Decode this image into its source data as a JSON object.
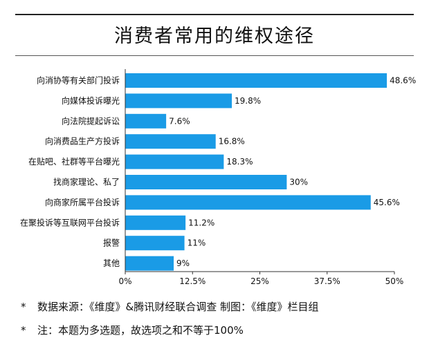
{
  "chart_data": {
    "type": "bar",
    "orientation": "horizontal",
    "title": "消费者常用的维权途径",
    "categories": [
      "向消协等有关部门投诉",
      "向媒体投诉曝光",
      "向法院提起诉讼",
      "向消费品生产方投诉",
      "在贴吧、社群等平台曝光",
      "找商家理论、私了",
      "向商家所属平台投诉",
      "在聚投诉等互联网平台投诉",
      "报警",
      "其他"
    ],
    "values": [
      48.6,
      19.8,
      7.6,
      16.8,
      18.3,
      30,
      45.6,
      11.2,
      11,
      9
    ],
    "value_labels": [
      "48.6%",
      "19.8%",
      "7.6%",
      "16.8%",
      "18.3%",
      "30%",
      "45.6%",
      "11.2%",
      "11%",
      "9%"
    ],
    "xlim": [
      0,
      50
    ],
    "xticks": [
      0,
      12.5,
      25,
      37.5,
      50
    ],
    "xtick_labels": [
      "0%",
      "12.5%",
      "25%",
      "37.5%",
      "50%"
    ],
    "grid": false,
    "bar_color": "#1a9be6"
  },
  "notes": [
    {
      "marker": "*",
      "text": "数据来源：《维度》&腾讯财经联合调查   制图：《维度》栏目组"
    },
    {
      "marker": "*",
      "text": "注：本题为多选题，故选项之和不等于100%"
    }
  ]
}
